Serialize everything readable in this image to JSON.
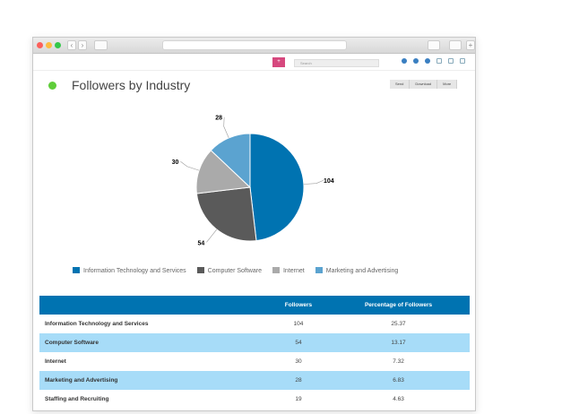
{
  "header": {
    "search_placeholder": "Search",
    "new_button": "+"
  },
  "page": {
    "title": "Followers by Industry",
    "actions": [
      "Send",
      "Download",
      "More"
    ]
  },
  "chart_data": {
    "type": "pie",
    "slices": [
      {
        "label": "Information Technology and Services",
        "value": 104,
        "color": "#0073b1"
      },
      {
        "label": "Computer Software",
        "value": 54,
        "color": "#5a5a5a"
      },
      {
        "label": "Internet",
        "value": 30,
        "color": "#aaaaaa"
      },
      {
        "label": "Marketing and Advertising",
        "value": 28,
        "color": "#5ba3d0"
      }
    ],
    "legend": "bottom"
  },
  "table": {
    "headers": [
      "",
      "Followers",
      "Percentage of Followers"
    ],
    "rows": [
      [
        "Information Technology and Services",
        "104",
        "25.37"
      ],
      [
        "Computer Software",
        "54",
        "13.17"
      ],
      [
        "Internet",
        "30",
        "7.32"
      ],
      [
        "Marketing and Advertising",
        "28",
        "6.83"
      ],
      [
        "Staffing and Recruiting",
        "19",
        "4.63"
      ]
    ]
  }
}
